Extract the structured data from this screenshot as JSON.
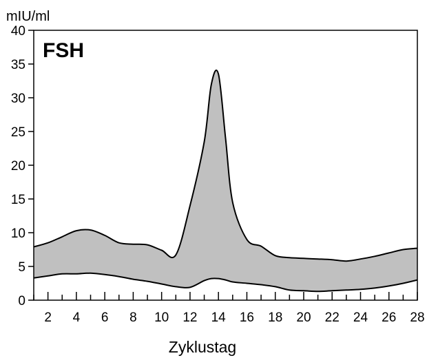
{
  "chart_data": {
    "type": "area",
    "title": "FSH",
    "ylabel": "mIU/ml",
    "xlabel": "Zyklustag",
    "xlim": [
      1,
      28
    ],
    "ylim": [
      0,
      40
    ],
    "x_ticks": [
      2,
      4,
      6,
      8,
      10,
      12,
      14,
      16,
      18,
      20,
      22,
      24,
      26,
      28
    ],
    "y_ticks": [
      0,
      5,
      10,
      15,
      20,
      25,
      30,
      35,
      40
    ],
    "minor_x_ticks": [
      1,
      3,
      5,
      7,
      9,
      11,
      13,
      15,
      17,
      19,
      21,
      23,
      25,
      27
    ],
    "grid": false,
    "fill_color": "#c0c0c0",
    "line_color": "#000000",
    "series": [
      {
        "name": "",
        "x": [
          1,
          2,
          3,
          4,
          5,
          6,
          7,
          8,
          9,
          10,
          11,
          12,
          13,
          13.5,
          14,
          14.5,
          15,
          16,
          17,
          18,
          19,
          20,
          21,
          22,
          23,
          24,
          25,
          26,
          27,
          28
        ],
        "upper": [
          7.9,
          8.5,
          9.4,
          10.3,
          10.4,
          9.6,
          8.5,
          8.3,
          8.2,
          7.4,
          6.7,
          14.0,
          23.5,
          32.0,
          33.5,
          24.0,
          14.5,
          9.0,
          8.0,
          6.6,
          6.3,
          6.2,
          6.1,
          6.0,
          5.8,
          6.1,
          6.5,
          7.0,
          7.5,
          7.7
        ],
        "lower": [
          3.3,
          3.6,
          3.9,
          3.9,
          4.0,
          3.8,
          3.5,
          3.1,
          2.8,
          2.4,
          2.0,
          1.9,
          2.9,
          3.2,
          3.2,
          3.0,
          2.7,
          2.5,
          2.3,
          2.0,
          1.5,
          1.4,
          1.3,
          1.4,
          1.5,
          1.6,
          1.8,
          2.1,
          2.5,
          3.0
        ]
      }
    ]
  }
}
